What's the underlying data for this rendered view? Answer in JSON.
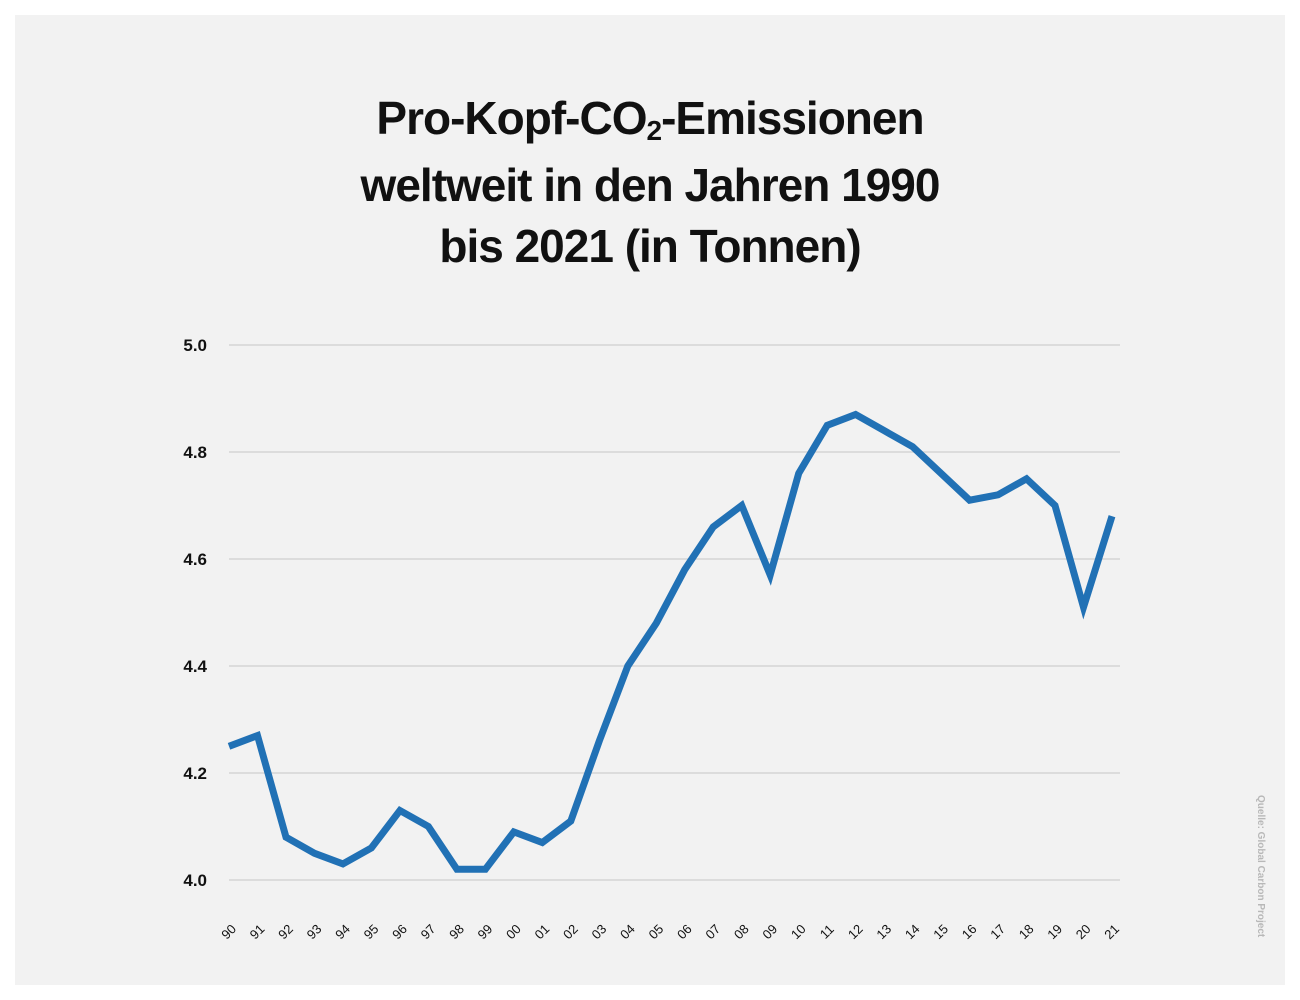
{
  "chart_data": {
    "type": "line",
    "title_parts": [
      "Pro-Kopf-CO",
      "2",
      "-Emissionen",
      "weltweit in den Jahren 1990",
      "bis 2021 (in Tonnen)"
    ],
    "source": "Quelle: Global Carbon Project",
    "categories": [
      "90",
      "91",
      "92",
      "93",
      "94",
      "95",
      "96",
      "97",
      "98",
      "99",
      "00",
      "01",
      "02",
      "03",
      "04",
      "05",
      "06",
      "07",
      "08",
      "09",
      "10",
      "11",
      "12",
      "13",
      "14",
      "15",
      "16",
      "17",
      "18",
      "19",
      "20",
      "21"
    ],
    "values": [
      4.25,
      4.27,
      4.08,
      4.05,
      4.03,
      4.06,
      4.13,
      4.1,
      4.02,
      4.02,
      4.09,
      4.07,
      4.11,
      4.26,
      4.4,
      4.48,
      4.58,
      4.66,
      4.7,
      4.57,
      4.76,
      4.85,
      4.87,
      4.84,
      4.81,
      4.76,
      4.71,
      4.72,
      4.75,
      4.7,
      4.51,
      4.68
    ],
    "ylim": [
      4.0,
      5.0
    ],
    "yticks": [
      "4.0",
      "4.2",
      "4.4",
      "4.6",
      "4.8",
      "5.0"
    ],
    "grid": true,
    "line_color": "#2171b5",
    "grid_color": "#d4d4d4",
    "background": "#f2f2f2"
  }
}
